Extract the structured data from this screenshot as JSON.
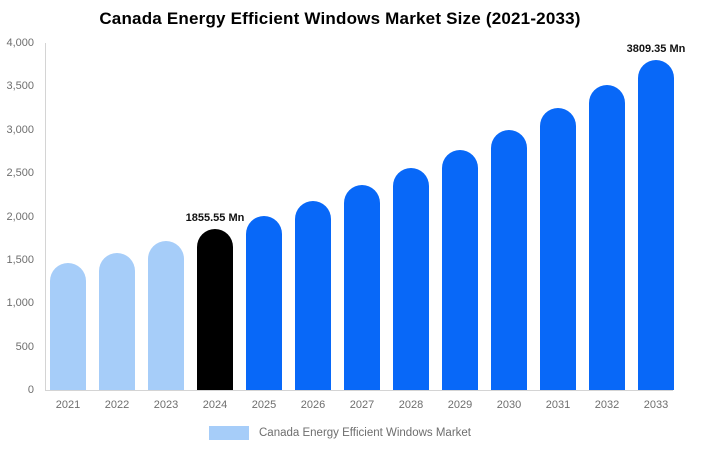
{
  "title": "Canada Energy Efficient Windows Market Size (2021-2033)",
  "legend": {
    "label": "Canada Energy Efficient Windows Market",
    "swatch_color": "#a6cdf9"
  },
  "colors": {
    "past": "#a6cdf9",
    "highlight": "#000000",
    "forecast": "#0868f8",
    "axis_line": "#d4d4d4",
    "tick_text": "#6e6e6e",
    "annotation_text": "#111111"
  },
  "chart_data": {
    "type": "bar",
    "title": "Canada Energy Efficient Windows Market Size (2021-2033)",
    "unit": "Mn",
    "categories": [
      "2021",
      "2022",
      "2023",
      "2024",
      "2025",
      "2026",
      "2027",
      "2028",
      "2029",
      "2030",
      "2031",
      "2032",
      "2033"
    ],
    "values": [
      1461,
      1583,
      1714,
      1855.55,
      2010,
      2177,
      2358,
      2555,
      2767,
      2997,
      3247,
      3517,
      3809.35
    ],
    "bar_roles": [
      "past",
      "past",
      "past",
      "highlight",
      "forecast",
      "forecast",
      "forecast",
      "forecast",
      "forecast",
      "forecast",
      "forecast",
      "forecast",
      "forecast"
    ],
    "ylim": [
      0,
      4000
    ],
    "yticks": [
      0,
      500,
      1000,
      1500,
      2000,
      2500,
      3000,
      3500,
      4000
    ],
    "yticklabels": [
      "0",
      "500",
      "1,000",
      "1,500",
      "2,000",
      "2,500",
      "3,000",
      "3,500",
      "4,000"
    ],
    "annotations": [
      {
        "index": 3,
        "text": "1855.55 Mn"
      },
      {
        "index": 12,
        "text": "3809.35 Mn"
      }
    ],
    "grid": false,
    "legend_entries": [
      "Canada Energy Efficient Windows Market"
    ],
    "legend_position": "bottom-center",
    "xlabel": "",
    "ylabel": ""
  }
}
